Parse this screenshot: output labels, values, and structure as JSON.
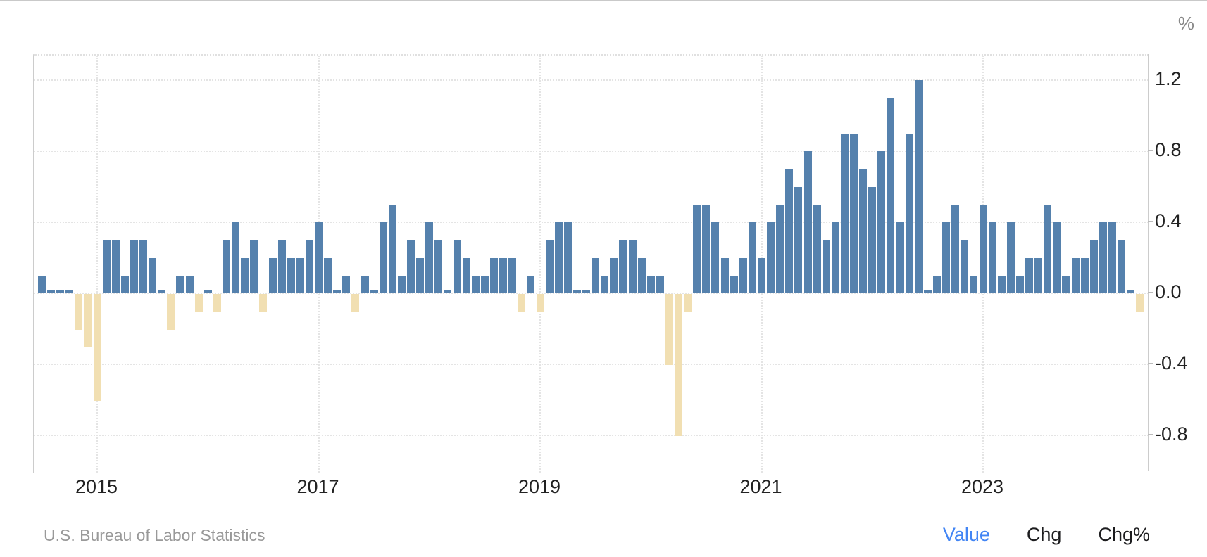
{
  "header": {
    "unit_label": "%"
  },
  "footer": {
    "source": "U.S. Bureau of Labor Statistics",
    "views": [
      {
        "label": "Value",
        "active": true
      },
      {
        "label": "Chg",
        "active": false
      },
      {
        "label": "Chg%",
        "active": false
      }
    ]
  },
  "chart_data": {
    "type": "bar",
    "title": "",
    "xlabel": "",
    "ylabel": "%",
    "legend": "none",
    "grid": "dotted",
    "y_axis_side": "right",
    "ylim": [
      -1.01,
      1.34
    ],
    "colors": {
      "positive": "#5581ad",
      "negative": "#f1dfb2"
    },
    "y_ticks": [
      {
        "label": "1.2",
        "value": 1.2
      },
      {
        "label": "0.8",
        "value": 0.8
      },
      {
        "label": "0.4",
        "value": 0.4
      },
      {
        "label": "0.0",
        "value": 0.0
      },
      {
        "label": "-0.4",
        "value": -0.4
      },
      {
        "label": "-0.8",
        "value": -0.8
      }
    ],
    "x_ticks": [
      {
        "label": "2015",
        "month": "2015-01"
      },
      {
        "label": "2017",
        "month": "2017-01"
      },
      {
        "label": "2019",
        "month": "2019-01"
      },
      {
        "label": "2021",
        "month": "2021-01"
      },
      {
        "label": "2023",
        "month": "2023-01"
      }
    ],
    "months": [
      "2014-07",
      "2014-08",
      "2014-09",
      "2014-10",
      "2014-11",
      "2014-12",
      "2015-01",
      "2015-02",
      "2015-03",
      "2015-04",
      "2015-05",
      "2015-06",
      "2015-07",
      "2015-08",
      "2015-09",
      "2015-10",
      "2015-11",
      "2015-12",
      "2016-01",
      "2016-02",
      "2016-03",
      "2016-04",
      "2016-05",
      "2016-06",
      "2016-07",
      "2016-08",
      "2016-09",
      "2016-10",
      "2016-11",
      "2016-12",
      "2017-01",
      "2017-02",
      "2017-03",
      "2017-04",
      "2017-05",
      "2017-06",
      "2017-07",
      "2017-08",
      "2017-09",
      "2017-10",
      "2017-11",
      "2017-12",
      "2018-01",
      "2018-02",
      "2018-03",
      "2018-04",
      "2018-05",
      "2018-06",
      "2018-07",
      "2018-08",
      "2018-09",
      "2018-10",
      "2018-11",
      "2018-12",
      "2019-01",
      "2019-02",
      "2019-03",
      "2019-04",
      "2019-05",
      "2019-06",
      "2019-07",
      "2019-08",
      "2019-09",
      "2019-10",
      "2019-11",
      "2019-12",
      "2020-01",
      "2020-02",
      "2020-03",
      "2020-04",
      "2020-05",
      "2020-06",
      "2020-07",
      "2020-08",
      "2020-09",
      "2020-10",
      "2020-11",
      "2020-12",
      "2021-01",
      "2021-02",
      "2021-03",
      "2021-04",
      "2021-05",
      "2021-06",
      "2021-07",
      "2021-08",
      "2021-09",
      "2021-10",
      "2021-11",
      "2021-12",
      "2022-01",
      "2022-02",
      "2022-03",
      "2022-04",
      "2022-05",
      "2022-06",
      "2022-07",
      "2022-08",
      "2022-09",
      "2022-10",
      "2022-11",
      "2022-12",
      "2023-01",
      "2023-02",
      "2023-03",
      "2023-04",
      "2023-05",
      "2023-06",
      "2023-07",
      "2023-08",
      "2023-09",
      "2023-10",
      "2023-11",
      "2023-12",
      "2024-01",
      "2024-02",
      "2024-03",
      "2024-04",
      "2024-05",
      "2024-06"
    ],
    "values": [
      0.1,
      0.0,
      0.0,
      0.0,
      -0.2,
      -0.3,
      -0.6,
      0.3,
      0.3,
      0.1,
      0.3,
      0.3,
      0.2,
      0.0,
      -0.2,
      0.1,
      0.1,
      -0.1,
      0.0,
      -0.1,
      0.3,
      0.4,
      0.2,
      0.3,
      -0.1,
      0.2,
      0.3,
      0.2,
      0.2,
      0.3,
      0.4,
      0.2,
      0.0,
      0.1,
      -0.1,
      0.1,
      0.0,
      0.4,
      0.5,
      0.1,
      0.3,
      0.2,
      0.4,
      0.3,
      0.0,
      0.3,
      0.2,
      0.1,
      0.1,
      0.2,
      0.2,
      0.2,
      -0.1,
      0.1,
      -0.1,
      0.3,
      0.4,
      0.4,
      0.0,
      0.0,
      0.2,
      0.1,
      0.2,
      0.3,
      0.3,
      0.2,
      0.1,
      0.1,
      -0.4,
      -0.8,
      -0.1,
      0.5,
      0.5,
      0.4,
      0.2,
      0.1,
      0.2,
      0.4,
      0.2,
      0.4,
      0.5,
      0.7,
      0.6,
      0.8,
      0.5,
      0.3,
      0.4,
      0.9,
      0.9,
      0.7,
      0.6,
      0.8,
      1.1,
      0.4,
      0.9,
      1.2,
      0.0,
      0.1,
      0.4,
      0.5,
      0.3,
      0.1,
      0.5,
      0.4,
      0.1,
      0.4,
      0.1,
      0.2,
      0.2,
      0.5,
      0.4,
      0.1,
      0.2,
      0.2,
      0.3,
      0.4,
      0.4,
      0.3,
      0.0,
      -0.1
    ]
  }
}
